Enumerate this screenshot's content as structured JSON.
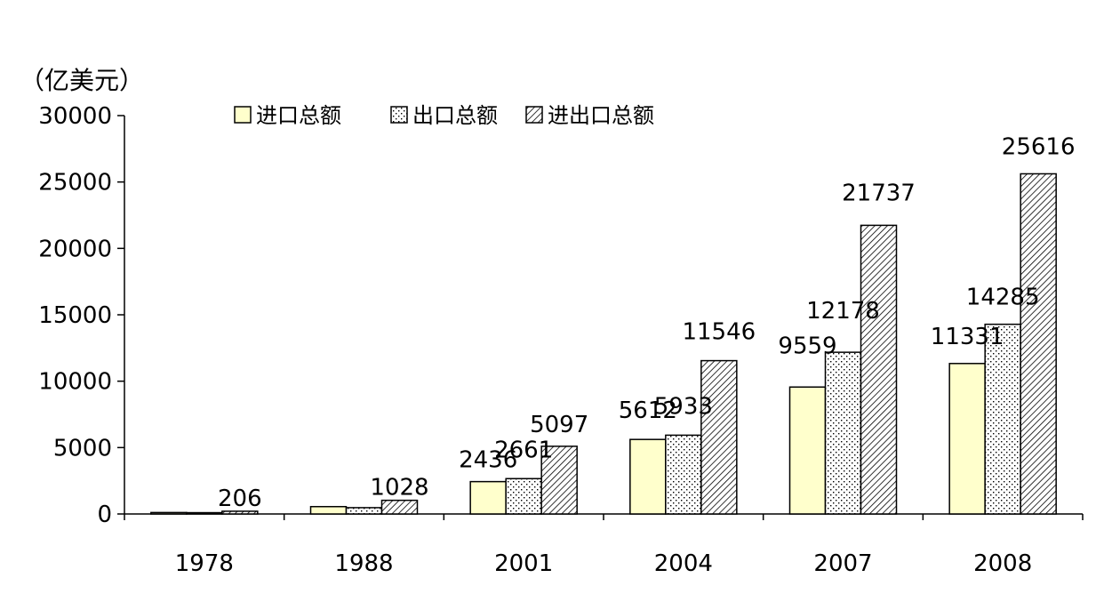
{
  "chart_data": {
    "type": "bar",
    "unit_label": "（亿美元）",
    "categories": [
      "1978",
      "1988",
      "2001",
      "2004",
      "2007",
      "2008"
    ],
    "series": [
      {
        "name": "进口总额",
        "pattern": "plain",
        "fill": "#ffffcc",
        "values": [
          109,
          553,
          2436,
          5612,
          9559,
          11331
        ],
        "data_labels": [
          "",
          "",
          "2436",
          "5612",
          "9559",
          "11331"
        ]
      },
      {
        "name": "出口总额",
        "pattern": "dots",
        "fill": "#ffffff",
        "values": [
          97,
          475,
          2661,
          5933,
          12178,
          14285
        ],
        "data_labels": [
          "",
          "",
          "2661",
          "5933",
          "12178",
          "14285"
        ]
      },
      {
        "name": "进出口总额",
        "pattern": "diagonal",
        "fill": "#ffffff",
        "values": [
          206,
          1028,
          5097,
          11546,
          21737,
          25616
        ],
        "data_labels": [
          "206",
          "1028",
          "5097",
          "11546",
          "21737",
          "25616"
        ]
      }
    ],
    "yticks": [
      "0",
      "5000",
      "10000",
      "15000",
      "20000",
      "25000",
      "30000"
    ],
    "ylim": [
      0,
      30000
    ],
    "legend_position": "top",
    "grid": false
  }
}
